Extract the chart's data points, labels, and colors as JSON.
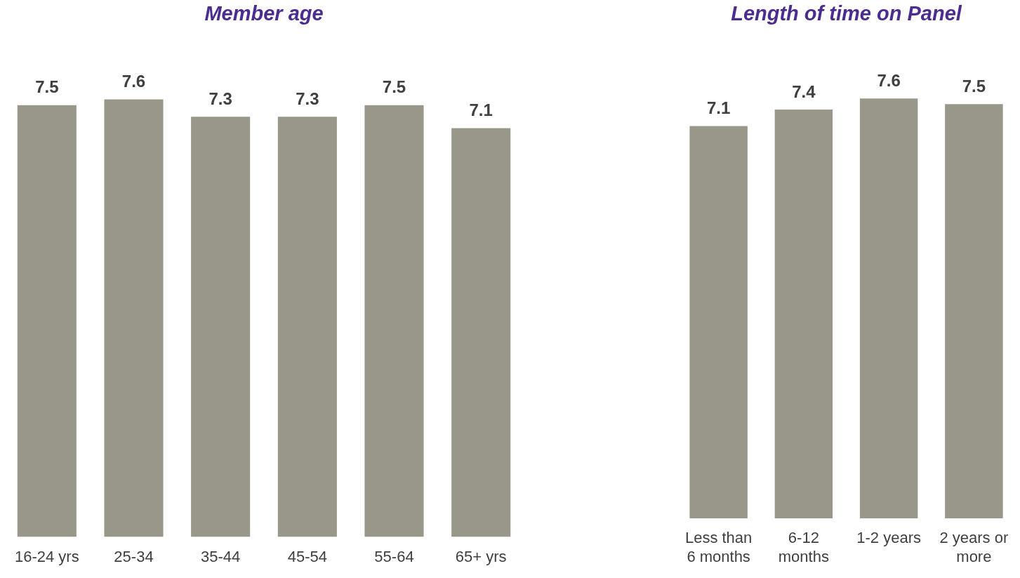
{
  "chart_data": [
    {
      "type": "bar",
      "title": "Member age",
      "categories": [
        "16-24 yrs",
        "25-34",
        "35-44",
        "45-54",
        "55-64",
        "65+ yrs"
      ],
      "values": [
        7.5,
        7.6,
        7.3,
        7.3,
        7.5,
        7.1
      ],
      "color": "#98978a",
      "data_labels": true,
      "grid": false,
      "legend": false
    },
    {
      "type": "bar",
      "title": "Length of time on Panel",
      "categories": [
        "Less than 6 months",
        "6-12 months",
        "1-2 years",
        "2 years or more"
      ],
      "values": [
        7.1,
        7.4,
        7.6,
        7.5
      ],
      "color": "#98978a",
      "data_labels": true,
      "grid": false,
      "legend": false
    }
  ]
}
